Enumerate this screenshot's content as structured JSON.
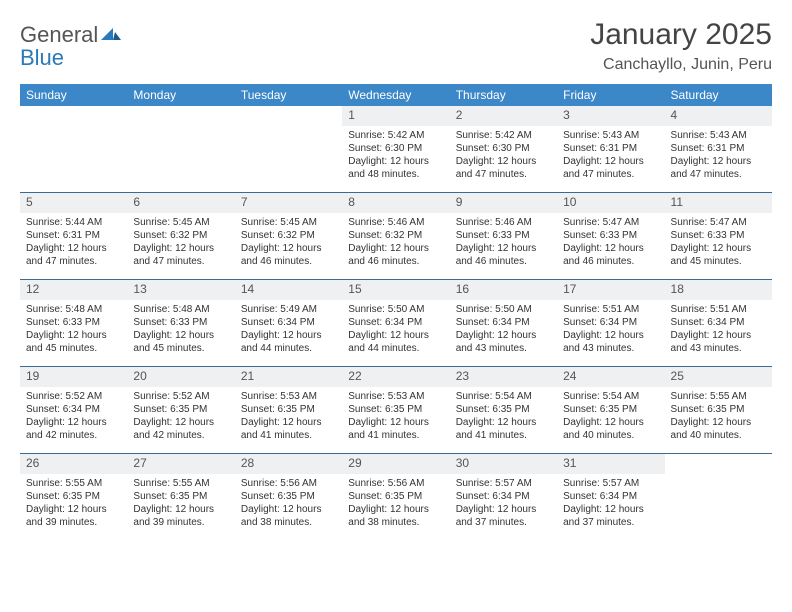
{
  "logo": {
    "word1": "General",
    "word2": "Blue"
  },
  "header": {
    "title": "January 2025",
    "location": "Canchayllo, Junin, Peru"
  },
  "colors": {
    "header_bar": "#3b87c8",
    "week_divider": "#3b6a94",
    "daynum_bg": "#eef0f2",
    "text": "#333333",
    "logo_blue": "#2a7ab9"
  },
  "calendar": {
    "weekdays": [
      "Sunday",
      "Monday",
      "Tuesday",
      "Wednesday",
      "Thursday",
      "Friday",
      "Saturday"
    ],
    "weeks": [
      [
        null,
        null,
        null,
        {
          "n": "1",
          "sunrise": "5:42 AM",
          "sunset": "6:30 PM",
          "daylight": "12 hours and 48 minutes."
        },
        {
          "n": "2",
          "sunrise": "5:42 AM",
          "sunset": "6:30 PM",
          "daylight": "12 hours and 47 minutes."
        },
        {
          "n": "3",
          "sunrise": "5:43 AM",
          "sunset": "6:31 PM",
          "daylight": "12 hours and 47 minutes."
        },
        {
          "n": "4",
          "sunrise": "5:43 AM",
          "sunset": "6:31 PM",
          "daylight": "12 hours and 47 minutes."
        }
      ],
      [
        {
          "n": "5",
          "sunrise": "5:44 AM",
          "sunset": "6:31 PM",
          "daylight": "12 hours and 47 minutes."
        },
        {
          "n": "6",
          "sunrise": "5:45 AM",
          "sunset": "6:32 PM",
          "daylight": "12 hours and 47 minutes."
        },
        {
          "n": "7",
          "sunrise": "5:45 AM",
          "sunset": "6:32 PM",
          "daylight": "12 hours and 46 minutes."
        },
        {
          "n": "8",
          "sunrise": "5:46 AM",
          "sunset": "6:32 PM",
          "daylight": "12 hours and 46 minutes."
        },
        {
          "n": "9",
          "sunrise": "5:46 AM",
          "sunset": "6:33 PM",
          "daylight": "12 hours and 46 minutes."
        },
        {
          "n": "10",
          "sunrise": "5:47 AM",
          "sunset": "6:33 PM",
          "daylight": "12 hours and 46 minutes."
        },
        {
          "n": "11",
          "sunrise": "5:47 AM",
          "sunset": "6:33 PM",
          "daylight": "12 hours and 45 minutes."
        }
      ],
      [
        {
          "n": "12",
          "sunrise": "5:48 AM",
          "sunset": "6:33 PM",
          "daylight": "12 hours and 45 minutes."
        },
        {
          "n": "13",
          "sunrise": "5:48 AM",
          "sunset": "6:33 PM",
          "daylight": "12 hours and 45 minutes."
        },
        {
          "n": "14",
          "sunrise": "5:49 AM",
          "sunset": "6:34 PM",
          "daylight": "12 hours and 44 minutes."
        },
        {
          "n": "15",
          "sunrise": "5:50 AM",
          "sunset": "6:34 PM",
          "daylight": "12 hours and 44 minutes."
        },
        {
          "n": "16",
          "sunrise": "5:50 AM",
          "sunset": "6:34 PM",
          "daylight": "12 hours and 43 minutes."
        },
        {
          "n": "17",
          "sunrise": "5:51 AM",
          "sunset": "6:34 PM",
          "daylight": "12 hours and 43 minutes."
        },
        {
          "n": "18",
          "sunrise": "5:51 AM",
          "sunset": "6:34 PM",
          "daylight": "12 hours and 43 minutes."
        }
      ],
      [
        {
          "n": "19",
          "sunrise": "5:52 AM",
          "sunset": "6:34 PM",
          "daylight": "12 hours and 42 minutes."
        },
        {
          "n": "20",
          "sunrise": "5:52 AM",
          "sunset": "6:35 PM",
          "daylight": "12 hours and 42 minutes."
        },
        {
          "n": "21",
          "sunrise": "5:53 AM",
          "sunset": "6:35 PM",
          "daylight": "12 hours and 41 minutes."
        },
        {
          "n": "22",
          "sunrise": "5:53 AM",
          "sunset": "6:35 PM",
          "daylight": "12 hours and 41 minutes."
        },
        {
          "n": "23",
          "sunrise": "5:54 AM",
          "sunset": "6:35 PM",
          "daylight": "12 hours and 41 minutes."
        },
        {
          "n": "24",
          "sunrise": "5:54 AM",
          "sunset": "6:35 PM",
          "daylight": "12 hours and 40 minutes."
        },
        {
          "n": "25",
          "sunrise": "5:55 AM",
          "sunset": "6:35 PM",
          "daylight": "12 hours and 40 minutes."
        }
      ],
      [
        {
          "n": "26",
          "sunrise": "5:55 AM",
          "sunset": "6:35 PM",
          "daylight": "12 hours and 39 minutes."
        },
        {
          "n": "27",
          "sunrise": "5:55 AM",
          "sunset": "6:35 PM",
          "daylight": "12 hours and 39 minutes."
        },
        {
          "n": "28",
          "sunrise": "5:56 AM",
          "sunset": "6:35 PM",
          "daylight": "12 hours and 38 minutes."
        },
        {
          "n": "29",
          "sunrise": "5:56 AM",
          "sunset": "6:35 PM",
          "daylight": "12 hours and 38 minutes."
        },
        {
          "n": "30",
          "sunrise": "5:57 AM",
          "sunset": "6:34 PM",
          "daylight": "12 hours and 37 minutes."
        },
        {
          "n": "31",
          "sunrise": "5:57 AM",
          "sunset": "6:34 PM",
          "daylight": "12 hours and 37 minutes."
        },
        null
      ]
    ],
    "labels": {
      "sunrise": "Sunrise:",
      "sunset": "Sunset:",
      "daylight": "Daylight:"
    }
  }
}
